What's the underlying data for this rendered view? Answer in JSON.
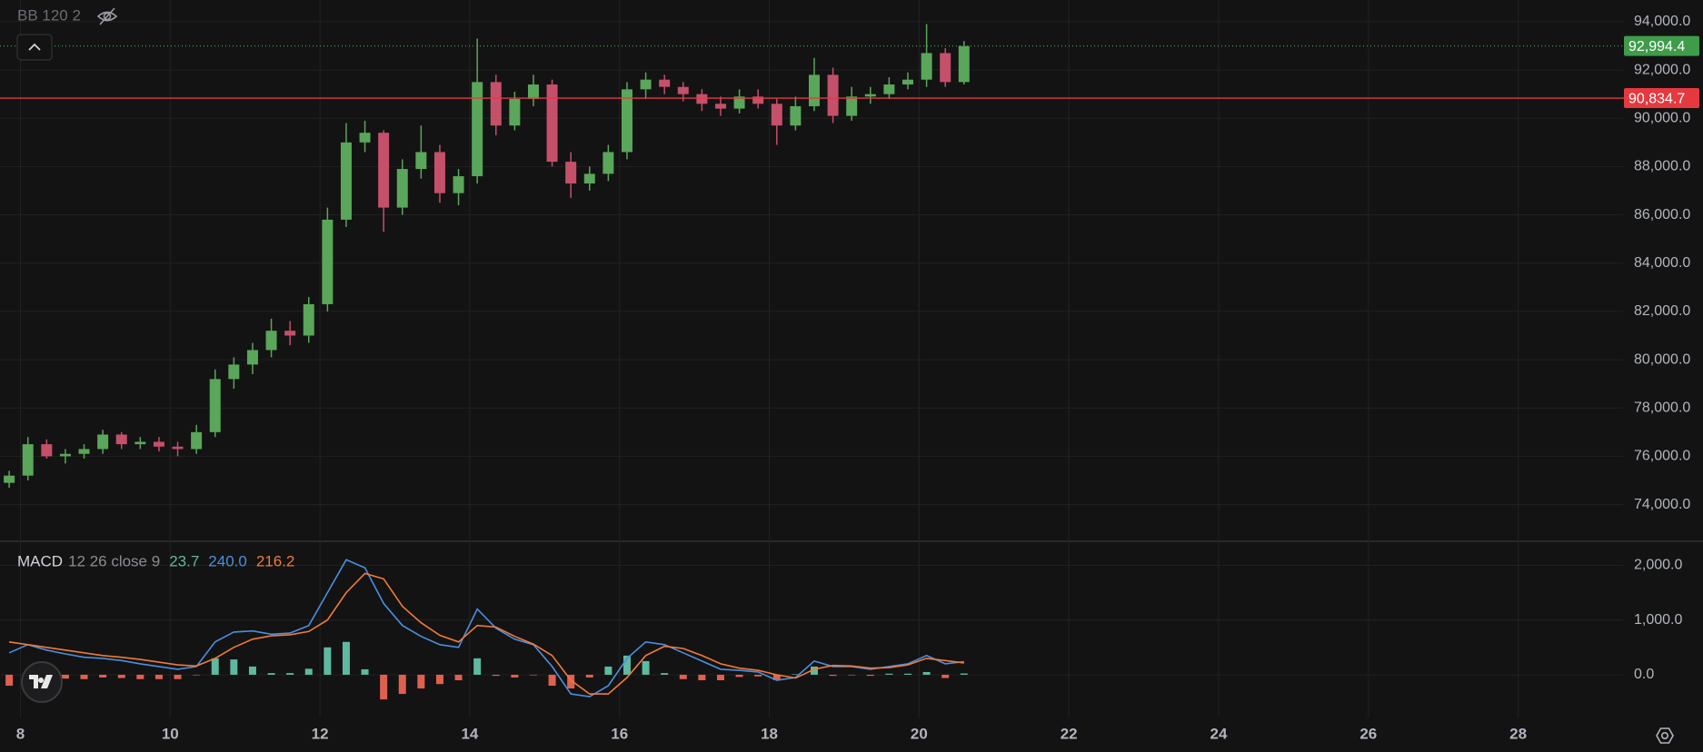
{
  "indicator": "BB 120 2",
  "chart_data": [
    {
      "type": "candlestick",
      "x": [
        7.85,
        8.1,
        8.35,
        8.6,
        8.85,
        9.1,
        9.35,
        9.6,
        9.85,
        10.1,
        10.35,
        10.6,
        10.85,
        11.1,
        11.35,
        11.6,
        11.85,
        12.1,
        12.35,
        12.6,
        12.85,
        13.1,
        13.35,
        13.6,
        13.85,
        14.1,
        14.35,
        14.6,
        14.85,
        15.1,
        15.35,
        15.6,
        15.85,
        16.1,
        16.35,
        16.6,
        16.85,
        17.1,
        17.35,
        17.6,
        17.85,
        18.1,
        18.35,
        18.6,
        18.85,
        19.1,
        19.35,
        19.6,
        19.85,
        20.1,
        20.35,
        20.6
      ],
      "open": [
        74900,
        75200,
        76500,
        76000,
        76100,
        76300,
        76900,
        76500,
        76600,
        76400,
        76300,
        77000,
        79200,
        79800,
        80400,
        81200,
        81000,
        82300,
        85800,
        89000,
        89400,
        86300,
        87900,
        88600,
        86900,
        87600,
        91500,
        89700,
        90800,
        91400,
        88200,
        87300,
        87700,
        88600,
        91200,
        91600,
        91300,
        91000,
        90600,
        90400,
        90900,
        90600,
        89700,
        90500,
        91800,
        90100,
        90900,
        91000,
        91400,
        91600,
        92700,
        91500
      ],
      "high": [
        75400,
        76800,
        76700,
        76300,
        76500,
        77100,
        77000,
        76800,
        76800,
        76600,
        77300,
        79600,
        80100,
        80700,
        81700,
        81600,
        82600,
        86300,
        89800,
        89900,
        89500,
        88300,
        89700,
        88900,
        87900,
        93300,
        91800,
        91100,
        91800,
        91600,
        88600,
        88000,
        88900,
        91500,
        91900,
        91800,
        91500,
        91200,
        90900,
        91200,
        91200,
        90800,
        90900,
        92500,
        92100,
        91300,
        91300,
        91700,
        91900,
        93900,
        92900,
        93200
      ],
      "low": [
        74700,
        75000,
        75900,
        75700,
        75900,
        76100,
        76300,
        76300,
        76200,
        76000,
        76100,
        76800,
        78800,
        79400,
        80100,
        80600,
        80700,
        82000,
        85500,
        88600,
        85300,
        86000,
        87500,
        86500,
        86400,
        87300,
        89300,
        89500,
        90500,
        88000,
        86700,
        87000,
        87400,
        88300,
        90800,
        91000,
        90700,
        90300,
        90100,
        90200,
        90400,
        88900,
        89500,
        90300,
        89800,
        89900,
        90600,
        90800,
        91200,
        91300,
        91300,
        91400
      ],
      "close": [
        75200,
        76500,
        76000,
        76100,
        76300,
        76900,
        76500,
        76600,
        76400,
        76300,
        77000,
        79200,
        79800,
        80400,
        81200,
        81000,
        82300,
        85800,
        89000,
        89400,
        86300,
        87900,
        88600,
        86900,
        87600,
        91500,
        89700,
        90800,
        91400,
        88200,
        87300,
        87700,
        88600,
        91200,
        91600,
        91300,
        91000,
        90600,
        90400,
        90900,
        90600,
        89700,
        90500,
        91800,
        90100,
        90900,
        91000,
        91400,
        91600,
        92700,
        91500,
        92994.4
      ],
      "up_color": "#5aa65a",
      "down_color": "#c4506a",
      "xlim": [
        7.8,
        29.4
      ],
      "xticks": [
        8,
        10,
        12,
        14,
        16,
        18,
        20,
        22,
        24,
        26,
        28
      ],
      "ylim": [
        72517,
        94899
      ],
      "yticks": [
        {
          "value": 74000,
          "label": "74,000.0"
        },
        {
          "value": 76000,
          "label": "76,000.0"
        },
        {
          "value": 78000,
          "label": "78,000.0"
        },
        {
          "value": 80000,
          "label": "80,000.0"
        },
        {
          "value": 82000,
          "label": "82,000.0"
        },
        {
          "value": 84000,
          "label": "84,000.0"
        },
        {
          "value": 86000,
          "label": "86,000.0"
        },
        {
          "value": 88000,
          "label": "88,000.0"
        },
        {
          "value": 90000,
          "label": "90,000.0"
        },
        {
          "value": 92000,
          "label": "92,000.0"
        },
        {
          "value": 94000,
          "label": "94,000.0"
        }
      ],
      "grid": true,
      "price_lines": [
        {
          "value": 92994.4,
          "label": "92,994.4",
          "color": "#3f9c4a",
          "style": "dotted"
        },
        {
          "value": 90834.7,
          "label": "90,834.7",
          "color": "#e5393f",
          "style": "solid"
        }
      ]
    },
    {
      "type": "macd",
      "title": "MACD",
      "subtitle": "12 26 close 9",
      "x": [
        7.85,
        8.1,
        8.35,
        8.6,
        8.85,
        9.1,
        9.35,
        9.6,
        9.85,
        10.1,
        10.35,
        10.6,
        10.85,
        11.1,
        11.35,
        11.6,
        11.85,
        12.1,
        12.35,
        12.6,
        12.85,
        13.1,
        13.35,
        13.6,
        13.85,
        14.1,
        14.35,
        14.6,
        14.85,
        15.1,
        15.35,
        15.6,
        15.85,
        16.1,
        16.35,
        16.6,
        16.85,
        17.1,
        17.35,
        17.6,
        17.85,
        18.1,
        18.35,
        18.6,
        18.85,
        19.1,
        19.35,
        19.6,
        19.85,
        20.1,
        20.35,
        20.6
      ],
      "xlim": [
        7.8,
        29.4
      ],
      "ylim": [
        -780,
        2420
      ],
      "yticks": [
        {
          "value": 0,
          "label": "0.0"
        },
        {
          "value": 1000,
          "label": "1,000.0"
        },
        {
          "value": 2000,
          "label": "2,000.0"
        }
      ],
      "grid": true,
      "histogram": {
        "last_label": "23.7",
        "color": "#5fb8a0",
        "negative_color": "#e0604f",
        "values": [
          -200,
          0,
          -50,
          -70,
          -80,
          -50,
          -60,
          -80,
          -80,
          -80,
          -10,
          300,
          280,
          150,
          30,
          30,
          110,
          500,
          600,
          100,
          -450,
          -350,
          -250,
          -170,
          -100,
          300,
          -20,
          -50,
          -10,
          -200,
          -250,
          -50,
          150,
          350,
          250,
          30,
          -80,
          -100,
          -100,
          -40,
          -30,
          -100,
          10,
          150,
          -20,
          -10,
          -20,
          20,
          20,
          50,
          -60,
          23.7
        ]
      },
      "macd": {
        "last_label": "240.0",
        "color": "#4a8fe0",
        "values": [
          400,
          550,
          450,
          380,
          320,
          300,
          260,
          200,
          150,
          100,
          150,
          600,
          780,
          800,
          740,
          760,
          900,
          1500,
          2100,
          1950,
          1300,
          900,
          700,
          550,
          500,
          1200,
          850,
          650,
          550,
          150,
          -350,
          -400,
          -200,
          300,
          600,
          550,
          400,
          250,
          100,
          80,
          50,
          -100,
          -50,
          250,
          150,
          150,
          100,
          150,
          200,
          350,
          200,
          240
        ]
      },
      "signal": {
        "last_label": "216.2",
        "color": "#f07a3a",
        "values": [
          600,
          550,
          500,
          450,
          400,
          350,
          320,
          280,
          230,
          180,
          160,
          300,
          500,
          650,
          710,
          730,
          790,
          1000,
          1500,
          1850,
          1750,
          1250,
          950,
          720,
          600,
          900,
          870,
          700,
          560,
          350,
          -100,
          -350,
          -350,
          -50,
          350,
          520,
          480,
          350,
          200,
          120,
          80,
          0,
          -60,
          100,
          170,
          160,
          120,
          130,
          180,
          300,
          260,
          216.2
        ]
      }
    }
  ]
}
